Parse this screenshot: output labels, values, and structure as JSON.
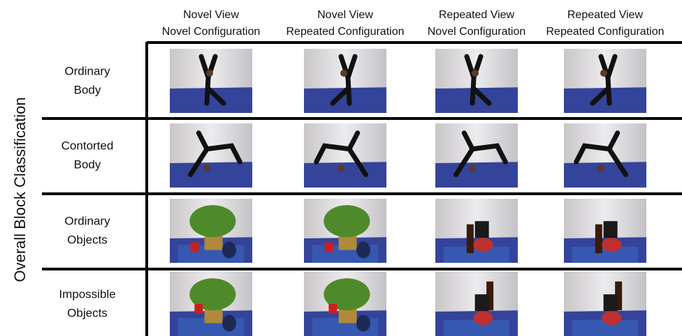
{
  "side_label": "Overall Block Classification",
  "columns": [
    {
      "line1": "Novel View",
      "line2": "Novel Configuration"
    },
    {
      "line1": "Novel View",
      "line2": "Repeated Configuration"
    },
    {
      "line1": "Repeated View",
      "line2": "Novel Configuration"
    },
    {
      "line1": "Repeated View",
      "line2": "Repeated Configuration"
    }
  ],
  "rows": [
    {
      "line1": "Ordinary",
      "line2": "Body"
    },
    {
      "line1": "Contorted",
      "line2": "Body"
    },
    {
      "line1": "Ordinary",
      "line2": "Objects"
    },
    {
      "line1": "Impossible",
      "line2": "Objects"
    }
  ]
}
